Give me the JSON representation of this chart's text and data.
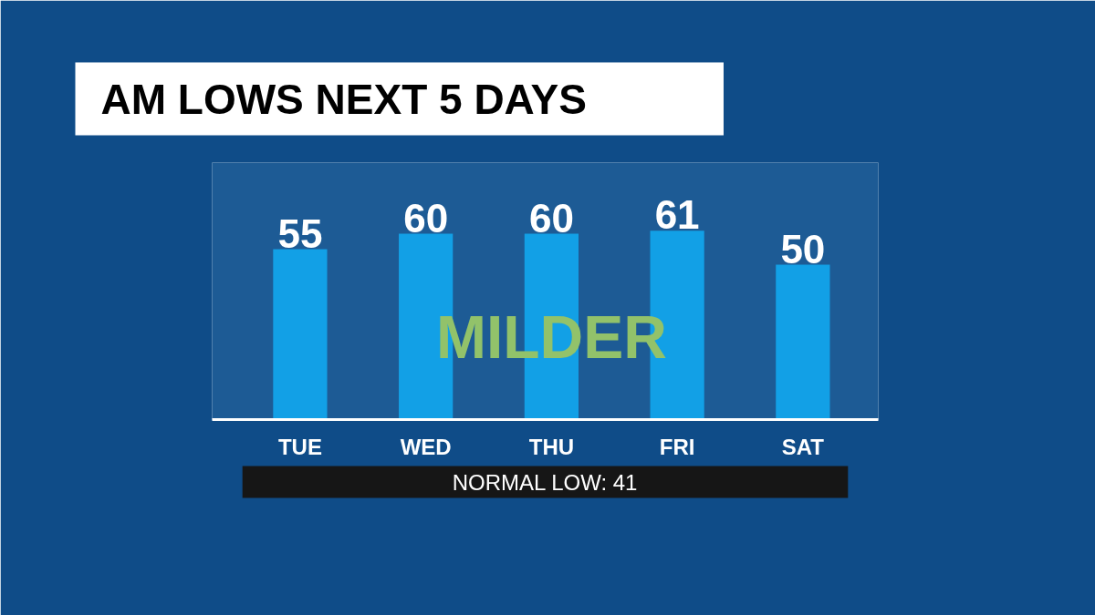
{
  "chart_data": {
    "type": "bar",
    "title": "AM LOWS NEXT 5 DAYS",
    "categories": [
      "TUE",
      "WED",
      "THU",
      "FRI",
      "SAT"
    ],
    "values": [
      55,
      60,
      60,
      61,
      50
    ],
    "color": "#12a0e6",
    "data_labels": true,
    "annotations": [
      "MILDER",
      "NORMAL LOW: 41"
    ]
  }
}
